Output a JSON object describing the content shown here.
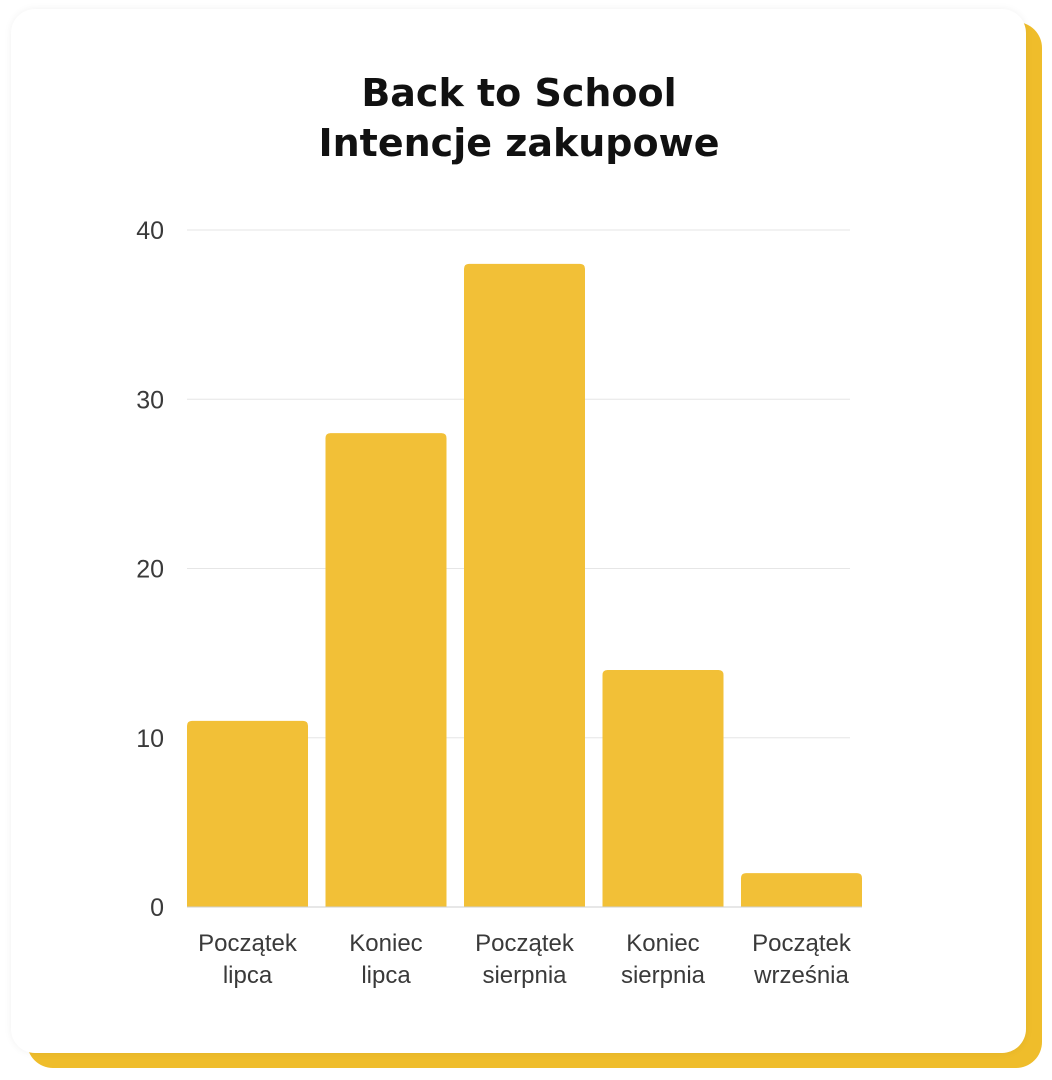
{
  "chart_data": {
    "type": "bar",
    "title_lines": [
      "Back to School",
      "Intencje zakupowe"
    ],
    "categories": [
      [
        "Początek",
        "lipca"
      ],
      [
        "Koniec",
        "lipca"
      ],
      [
        "Początek",
        "sierpnia"
      ],
      [
        "Koniec",
        "sierpnia"
      ],
      [
        "Początek",
        "września"
      ]
    ],
    "values": [
      11,
      28,
      38,
      14,
      2
    ],
    "yticks": [
      0,
      10,
      20,
      30,
      40
    ],
    "ylim": [
      0,
      40
    ],
    "grid": true,
    "bar_color": "#f2c037",
    "accent_color": "#efbd2b"
  }
}
